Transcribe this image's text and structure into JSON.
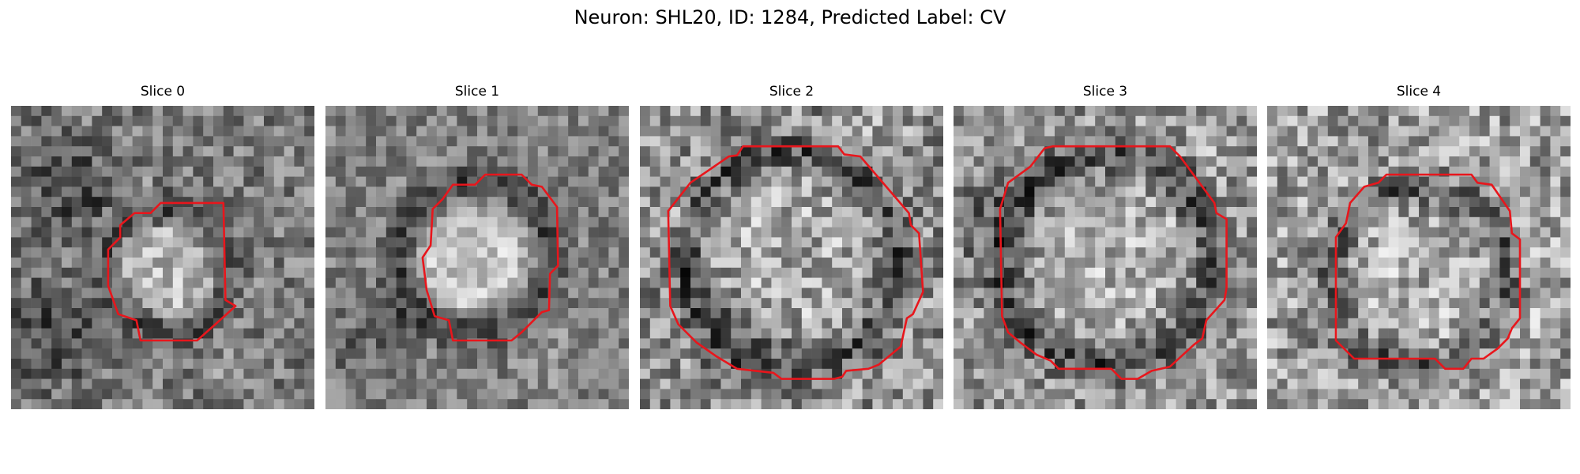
{
  "figure": {
    "title": "Neuron: SHL20, ID: 1284, Predicted Label: CV"
  },
  "panels": [
    {
      "title": "Slice 0"
    },
    {
      "title": "Slice 1"
    },
    {
      "title": "Slice 2"
    },
    {
      "title": "Slice 3"
    },
    {
      "title": "Slice 4"
    }
  ],
  "colors": {
    "contour": "#e8161c"
  }
}
